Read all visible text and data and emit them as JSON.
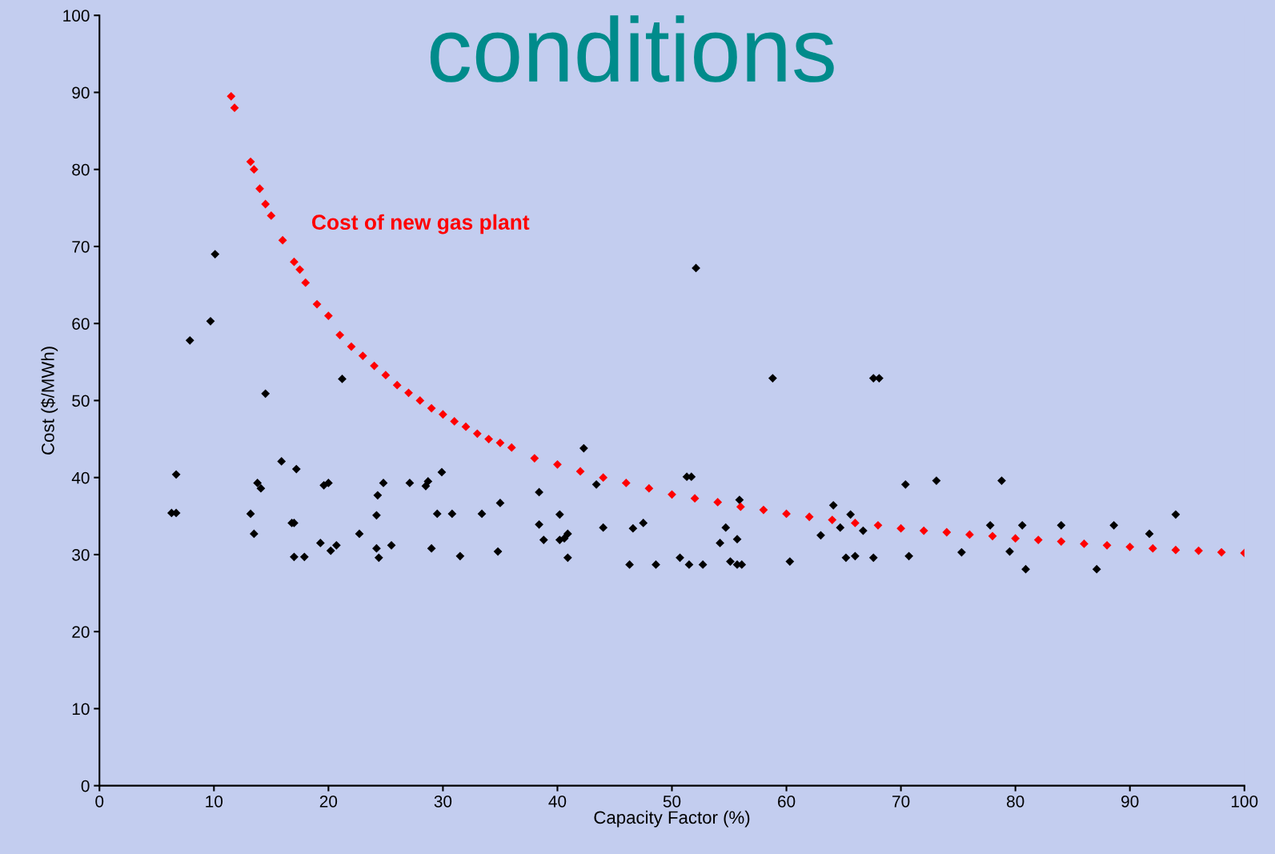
{
  "chart_data": {
    "type": "scatter",
    "title": "conditions",
    "xlabel": "Capacity Factor (%)",
    "ylabel": "Cost ($/MWh)",
    "xlim": [
      0,
      100
    ],
    "ylim": [
      0,
      100
    ],
    "xticks": [
      0,
      10,
      20,
      30,
      40,
      50,
      60,
      70,
      80,
      90,
      100
    ],
    "yticks": [
      0,
      10,
      20,
      30,
      40,
      50,
      60,
      70,
      80,
      90,
      100
    ],
    "grid": false,
    "legend": false,
    "marker": "diamond",
    "annotations": [
      "Cost of new gas plant"
    ],
    "series": [
      {
        "color": "#000000",
        "x": [
          6.3,
          6.7,
          6.7,
          7.9,
          9.7,
          10.1,
          13.2,
          13.5,
          13.8,
          14.1,
          14.5,
          15.9,
          16.8,
          17.0,
          17.2,
          17.0,
          17.9,
          19.3,
          19.6,
          20.0,
          20.2,
          20.7,
          21.2,
          22.7,
          24.2,
          24.3,
          24.8,
          24.2,
          24.4,
          25.5,
          27.1,
          28.5,
          28.7,
          29.0,
          29.5,
          29.9,
          30.8,
          31.5,
          33.4,
          34.8,
          35.0,
          38.4,
          38.4,
          38.8,
          40.2,
          40.2,
          40.6,
          40.9,
          40.9,
          42.3,
          43.4,
          44.0,
          46.3,
          46.6,
          47.5,
          48.6,
          50.7,
          51.3,
          51.7,
          51.5,
          52.1,
          52.7,
          54.2,
          54.7,
          55.1,
          55.7,
          55.7,
          56.1,
          55.9,
          58.8,
          60.3,
          63.0,
          64.1,
          64.7,
          65.2,
          65.6,
          66.0,
          66.7,
          67.6,
          68.1,
          67.6,
          70.4,
          70.7,
          73.1,
          75.3,
          77.8,
          78.8,
          79.5,
          80.6,
          80.9,
          84.0,
          87.1,
          88.6,
          91.7,
          94.0
        ],
        "values": [
          35.4,
          35.4,
          40.4,
          57.8,
          60.3,
          69.0,
          35.3,
          32.7,
          39.3,
          38.6,
          50.9,
          42.1,
          34.1,
          34.1,
          41.1,
          29.7,
          29.7,
          31.5,
          39.0,
          39.3,
          30.5,
          31.2,
          52.8,
          32.7,
          35.1,
          37.7,
          39.3,
          30.8,
          29.6,
          31.2,
          39.3,
          38.9,
          39.5,
          30.8,
          35.3,
          40.7,
          35.3,
          29.8,
          35.3,
          30.4,
          36.7,
          38.1,
          33.9,
          31.9,
          35.2,
          31.9,
          32.1,
          32.7,
          29.6,
          43.8,
          39.1,
          33.5,
          28.7,
          33.4,
          34.1,
          28.7,
          29.6,
          40.1,
          40.1,
          28.7,
          67.2,
          28.7,
          31.5,
          33.5,
          29.1,
          32.0,
          28.7,
          28.7,
          37.1,
          52.9,
          29.1,
          32.5,
          36.4,
          33.5,
          29.6,
          35.2,
          29.8,
          33.1,
          52.9,
          52.9,
          29.6,
          39.1,
          29.8,
          39.6,
          30.3,
          33.8,
          39.6,
          30.4,
          33.8,
          28.1,
          33.8,
          28.1,
          33.8,
          32.7,
          35.2
        ]
      },
      {
        "color": "#ff0000",
        "x": [
          11.5,
          11.8,
          13.2,
          13.5,
          14,
          14.5,
          15,
          16,
          17,
          17.5,
          18,
          19,
          20,
          21,
          22,
          23,
          24,
          25,
          26,
          27,
          28,
          29,
          30,
          31,
          32,
          33,
          34,
          35,
          36,
          38,
          40,
          42,
          44,
          46,
          48,
          50,
          52,
          54,
          56,
          58,
          60,
          62,
          64,
          66,
          68,
          70,
          72,
          74,
          76,
          78,
          80,
          82,
          84,
          86,
          88,
          90,
          92,
          94,
          96,
          98,
          100
        ],
        "values": [
          89.5,
          88,
          81,
          80,
          77.5,
          75.5,
          74,
          70.8,
          68,
          67,
          65.3,
          62.5,
          61,
          58.5,
          57,
          55.8,
          54.5,
          53.3,
          52,
          51,
          50,
          49,
          48.2,
          47.3,
          46.6,
          45.7,
          45,
          44.5,
          43.9,
          42.5,
          41.7,
          40.8,
          40,
          39.3,
          38.6,
          37.8,
          37.3,
          36.8,
          36.2,
          35.8,
          35.3,
          34.9,
          34.5,
          34.1,
          33.8,
          33.4,
          33.1,
          32.9,
          32.6,
          32.4,
          32.1,
          31.9,
          31.7,
          31.4,
          31.2,
          31.0,
          30.8,
          30.6,
          30.5,
          30.3,
          30.2
        ]
      }
    ]
  }
}
